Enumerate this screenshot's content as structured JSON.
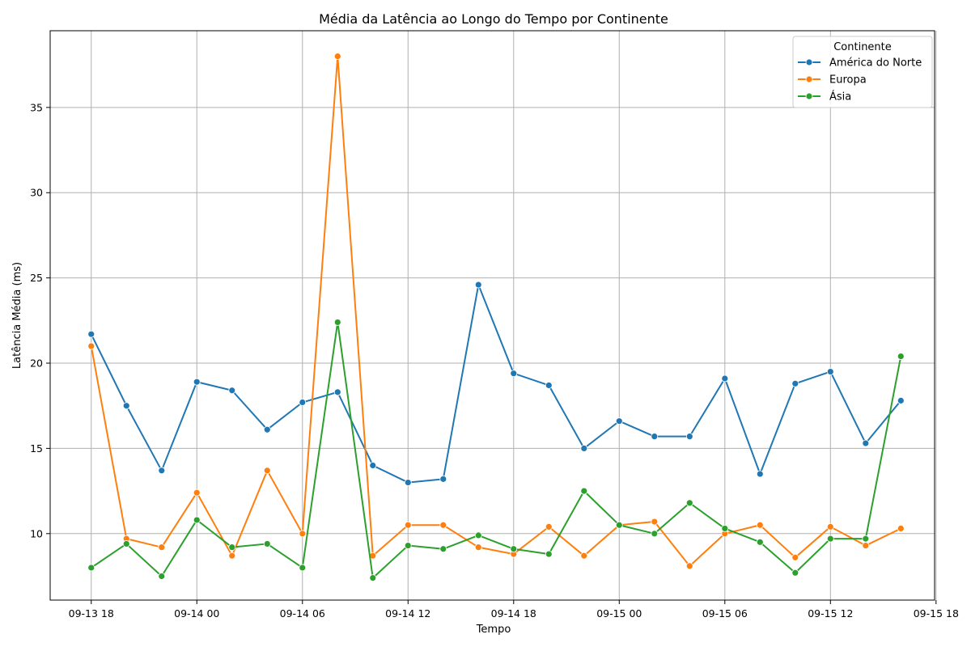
{
  "chart_data": {
    "type": "line",
    "title": "Média da Latência ao Longo do Tempo por Continente",
    "xlabel": "Tempo",
    "ylabel": "Latência Média (ms)",
    "x": [
      "2023-09-13T18:00",
      "2023-09-13T20:00",
      "2023-09-13T22:00",
      "2023-09-14T00:00",
      "2023-09-14T02:00",
      "2023-09-14T04:00",
      "2023-09-14T06:00",
      "2023-09-14T08:00",
      "2023-09-14T10:00",
      "2023-09-14T12:00",
      "2023-09-14T14:00",
      "2023-09-14T16:00",
      "2023-09-14T18:00",
      "2023-09-14T20:00",
      "2023-09-14T22:00",
      "2023-09-15T00:00",
      "2023-09-15T02:00",
      "2023-09-15T04:00",
      "2023-09-15T06:00",
      "2023-09-15T08:00",
      "2023-09-15T10:00",
      "2023-09-15T12:00",
      "2023-09-15T14:00",
      "2023-09-15T16:00"
    ],
    "x_ticks": [
      "09-13 18",
      "09-14 00",
      "09-14 06",
      "09-14 12",
      "09-14 18",
      "09-15 00",
      "09-15 06",
      "09-15 12",
      "09-15 18"
    ],
    "x_tick_values": [
      "2023-09-13T18:00",
      "2023-09-14T00:00",
      "2023-09-14T06:00",
      "2023-09-14T12:00",
      "2023-09-14T18:00",
      "2023-09-15T00:00",
      "2023-09-15T06:00",
      "2023-09-15T12:00",
      "2023-09-15T18:00"
    ],
    "xlim": [
      "2023-09-13T15:40",
      "2023-09-15T17:55"
    ],
    "y_ticks": [
      10,
      15,
      20,
      25,
      30,
      35
    ],
    "ylim": [
      6.1,
      39.5
    ],
    "grid": true,
    "legend": {
      "title": "Continente",
      "position": "top-right"
    },
    "series": [
      {
        "name": "América do Norte",
        "color": "#1f77b4",
        "values": [
          21.7,
          17.5,
          13.7,
          18.9,
          18.4,
          16.1,
          17.7,
          18.3,
          14.0,
          13.0,
          13.2,
          24.6,
          19.4,
          18.7,
          15.0,
          16.6,
          15.7,
          15.7,
          19.1,
          13.5,
          18.8,
          19.5,
          15.3,
          17.8
        ]
      },
      {
        "name": "Europa",
        "color": "#ff7f0e",
        "values": [
          21.0,
          9.7,
          9.2,
          12.4,
          8.7,
          13.7,
          10.0,
          38.0,
          8.7,
          10.5,
          10.5,
          9.2,
          8.8,
          10.4,
          8.7,
          10.5,
          10.7,
          8.1,
          10.0,
          10.5,
          8.6,
          10.4,
          9.3,
          10.3
        ]
      },
      {
        "name": "Ásia",
        "color": "#2ca02c",
        "values": [
          8.0,
          9.4,
          7.5,
          10.8,
          9.2,
          9.4,
          8.0,
          22.4,
          7.4,
          9.3,
          9.1,
          9.9,
          9.1,
          8.8,
          12.5,
          10.5,
          10.0,
          11.8,
          10.3,
          9.5,
          7.7,
          9.7,
          9.7,
          20.4
        ]
      }
    ]
  }
}
